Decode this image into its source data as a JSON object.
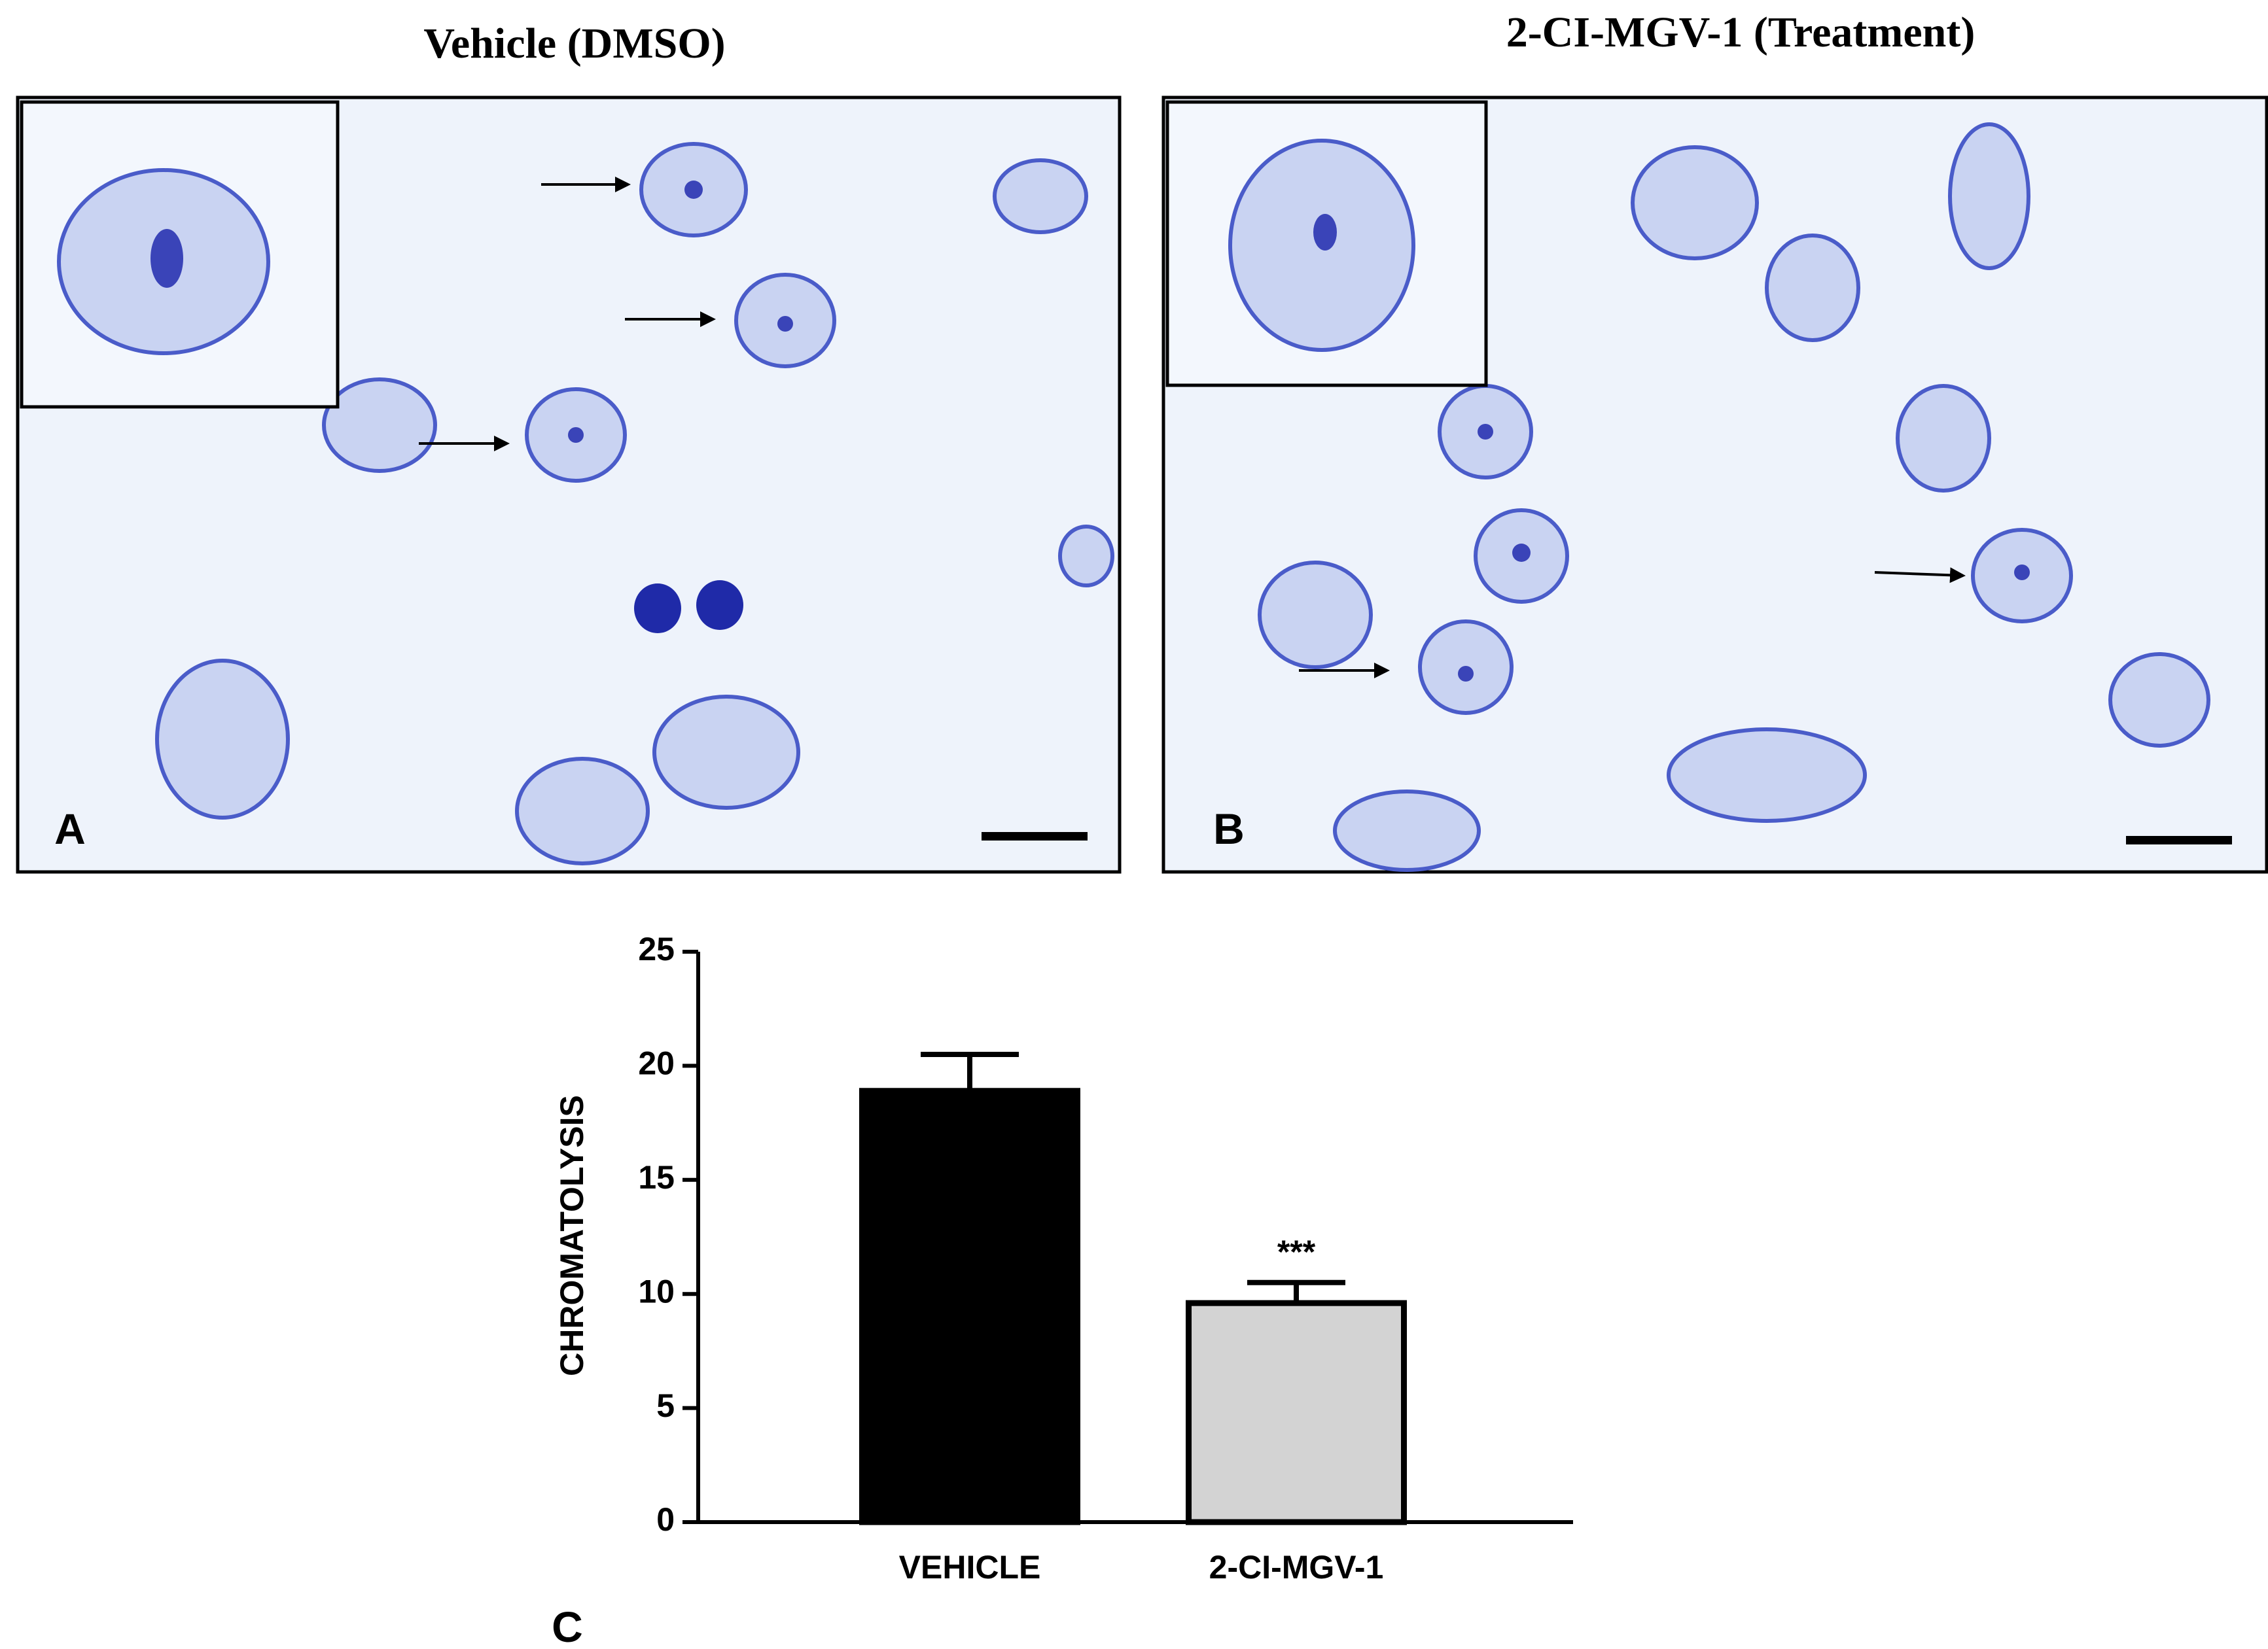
{
  "panels": [
    {
      "title": "Vehicle (DMSO)",
      "label": "A"
    },
    {
      "title": "2-CI-MGV-1 (Treatment)",
      "label": "B"
    }
  ],
  "chart_data": {
    "type": "bar",
    "label": "C",
    "ylabel": "CHROMATOLYSIS",
    "categories": [
      "VEHICLE",
      "2-CI-MGV-1"
    ],
    "values": [
      18.9,
      9.6
    ],
    "errors": [
      1.6,
      0.9
    ],
    "colors": [
      "#000000",
      "#d3d3d3"
    ],
    "annotation": "***",
    "ylim": [
      0,
      25
    ],
    "yticks": [
      0,
      5,
      10,
      15,
      20,
      25
    ]
  }
}
